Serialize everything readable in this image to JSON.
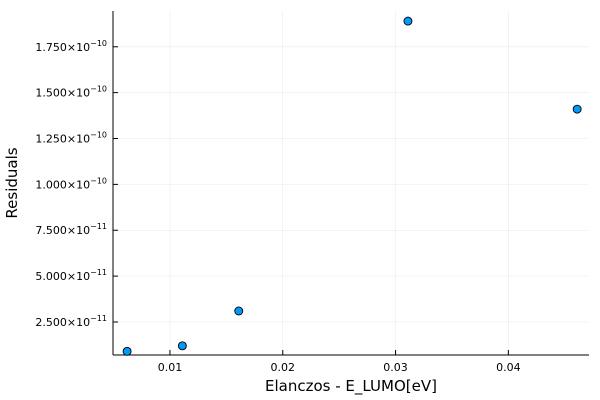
{
  "chart_data": {
    "type": "scatter",
    "xlabel": "Elanczos - E_LUMO[eV]",
    "ylabel": "Residuals",
    "xlim": [
      0.00495,
      0.04715
    ],
    "ylim": [
      7e-12,
      1.945e-10
    ],
    "grid": true,
    "legend": "none",
    "marker_color": "#009af9",
    "x_ticks": [
      {
        "value": 0.01,
        "label": "0.01"
      },
      {
        "value": 0.02,
        "label": "0.02"
      },
      {
        "value": 0.03,
        "label": "0.03"
      },
      {
        "value": 0.04,
        "label": "0.04"
      }
    ],
    "y_ticks": [
      {
        "value": 2.5e-11,
        "mant": "2.500",
        "exp": "−11"
      },
      {
        "value": 5e-11,
        "mant": "5.000",
        "exp": "−11"
      },
      {
        "value": 7.5e-11,
        "mant": "7.500",
        "exp": "−11"
      },
      {
        "value": 1e-10,
        "mant": "1.000",
        "exp": "−10"
      },
      {
        "value": 1.25e-10,
        "mant": "1.250",
        "exp": "−10"
      },
      {
        "value": 1.5e-10,
        "mant": "1.500",
        "exp": "−10"
      },
      {
        "value": 1.75e-10,
        "mant": "1.750",
        "exp": "−10"
      }
    ],
    "points": [
      {
        "x": 0.0062,
        "y": 9e-12
      },
      {
        "x": 0.0111,
        "y": 1.2e-11
      },
      {
        "x": 0.0161,
        "y": 3.1e-11
      },
      {
        "x": 0.0311,
        "y": 1.89e-10
      },
      {
        "x": 0.0461,
        "y": 1.41e-10
      }
    ]
  }
}
